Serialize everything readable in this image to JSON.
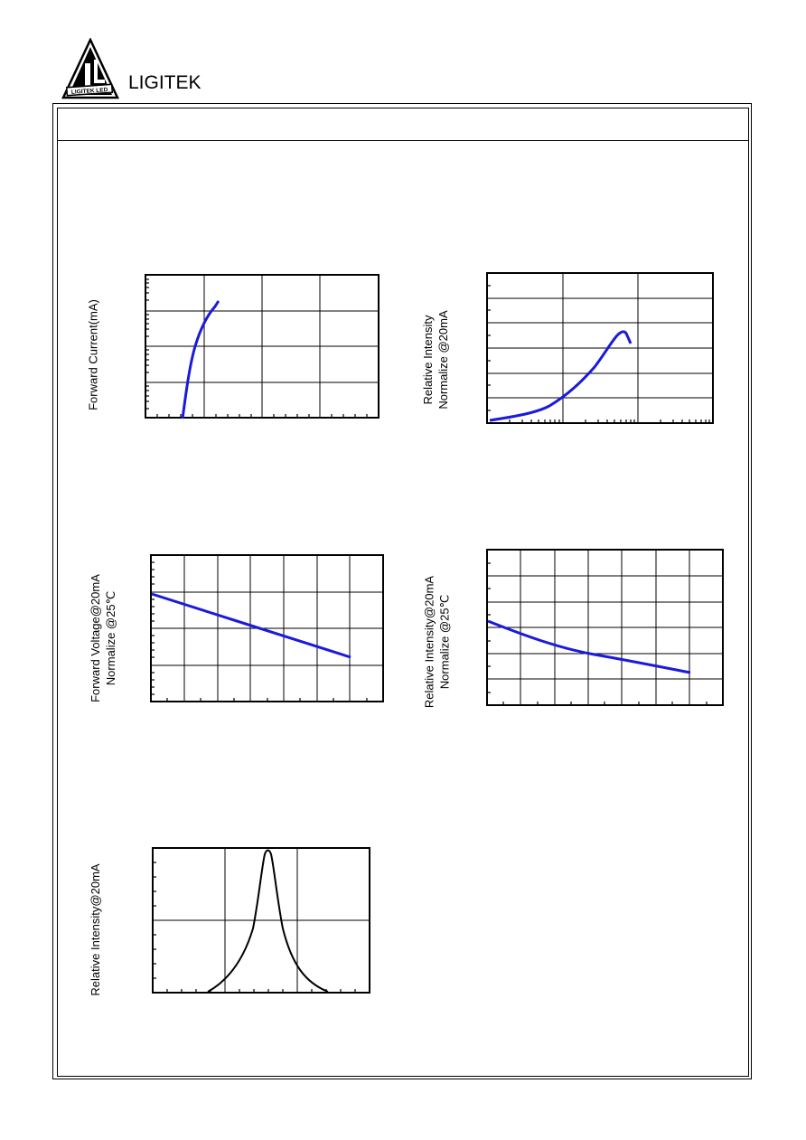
{
  "header": {
    "brand": "LIGITEK",
    "logo_text": "LIGITEK LED",
    "logo_icon": "ligitek-triangle-logo-icon"
  },
  "charts": [
    {
      "id": "forward-current",
      "ylabel": "Forward Current(mA)",
      "ylabel2": "",
      "chart_data": {
        "type": "line",
        "yscale": "log",
        "curve_color": "#1a1adc"
      }
    },
    {
      "id": "relative-intensity-vs-current",
      "ylabel": "Relative Intensity",
      "ylabel2": "Normalize @20mA",
      "chart_data": {
        "type": "line",
        "xscale": "log",
        "curve_color": "#1a1adc"
      }
    },
    {
      "id": "forward-voltage-vs-temperature",
      "ylabel": "Forward Voltage@20mA",
      "ylabel2": "Normalize @25℃",
      "chart_data": {
        "type": "line",
        "curve_color": "#1a1adc"
      }
    },
    {
      "id": "relative-intensity-vs-temperature",
      "ylabel": "Relative Intensity@20mA",
      "ylabel2": "Normalize @25℃",
      "chart_data": {
        "type": "line",
        "curve_color": "#1a1adc"
      }
    },
    {
      "id": "spectrum",
      "ylabel": "Relative Intensity@20mA",
      "ylabel2": "",
      "chart_data": {
        "type": "line",
        "curve_color": "#000000"
      }
    }
  ]
}
